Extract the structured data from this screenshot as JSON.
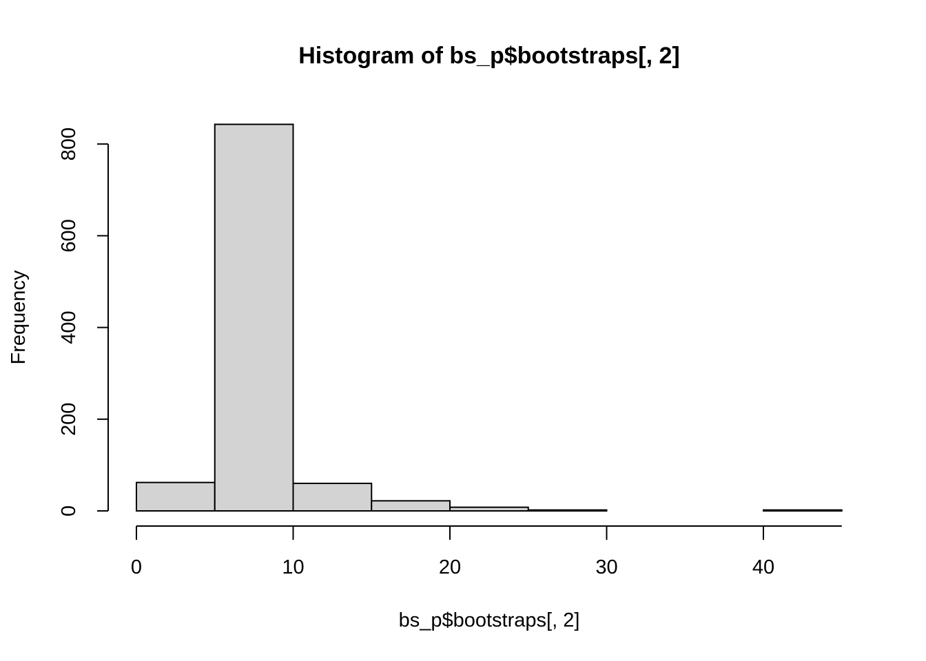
{
  "chart_data": {
    "type": "bar",
    "title": "Histogram of bs_p$bootstraps[, 2]",
    "xlabel": "bs_p$bootstraps[, 2]",
    "ylabel": "Frequency",
    "bin_edges": [
      0,
      5,
      10,
      15,
      20,
      25,
      30,
      35,
      40,
      45
    ],
    "counts": [
      62,
      843,
      60,
      22,
      8,
      2,
      0,
      0,
      2
    ],
    "x_ticks": [
      0,
      10,
      20,
      30,
      40
    ],
    "y_ticks": [
      0,
      200,
      400,
      600,
      800
    ],
    "xlim": [
      0,
      45
    ],
    "ylim": [
      0,
      843
    ],
    "grid": false,
    "colors": {
      "bar_fill": "#d3d3d3",
      "bar_stroke": "#000000"
    }
  }
}
